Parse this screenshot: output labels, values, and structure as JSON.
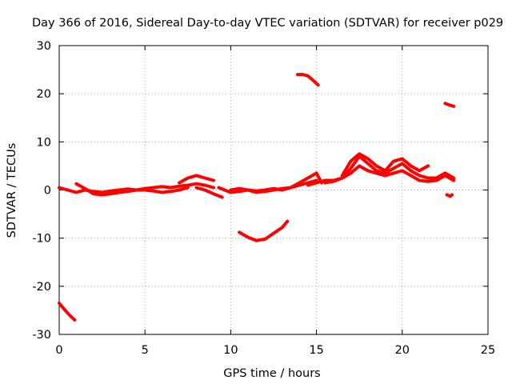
{
  "chart_data": {
    "type": "scatter",
    "title": "Day 366 of 2016, Sidereal Day-to-day VTEC variation (SDTVAR) for receiver p029",
    "xlabel": "GPS time / hours",
    "ylabel": "SDTVAR / TECUs",
    "xlim": [
      0,
      25
    ],
    "ylim": [
      -30,
      30
    ],
    "xticks": [
      0,
      5,
      10,
      15,
      20,
      25
    ],
    "yticks": [
      -30,
      -20,
      -10,
      0,
      10,
      20,
      30
    ],
    "xtick_labels": [
      "0",
      "5",
      "10",
      "15",
      "20",
      "25"
    ],
    "ytick_labels": [
      "-30",
      "-20",
      "-10",
      "0",
      "10",
      "20",
      "30"
    ],
    "grid": true,
    "color": "#ff0000",
    "series": [
      {
        "name": "arc-initial-negative",
        "x": [
          0.0,
          0.3,
          0.6,
          0.9
        ],
        "y": [
          -23.5,
          -24.8,
          -26.0,
          -27.0
        ]
      },
      {
        "name": "arc-baseline-a",
        "x": [
          0.0,
          0.5,
          1.0,
          1.5,
          2.0,
          2.5,
          3.0,
          3.5,
          4.0,
          4.5,
          5.0,
          5.5,
          6.0,
          6.5,
          7.0,
          7.5,
          8.0,
          8.5,
          9.0
        ],
        "y": [
          0.5,
          0.0,
          -0.5,
          0.0,
          -0.3,
          -0.5,
          -0.2,
          0.0,
          0.2,
          0.0,
          0.3,
          0.5,
          0.7,
          0.5,
          0.8,
          1.0,
          1.3,
          1.0,
          0.5
        ]
      },
      {
        "name": "arc-baseline-b",
        "x": [
          1.0,
          1.5,
          2.0,
          2.5,
          3.0,
          3.5,
          4.0,
          4.5,
          5.0,
          5.5,
          6.0,
          6.5,
          7.0,
          7.5
        ],
        "y": [
          1.3,
          0.3,
          -0.8,
          -1.0,
          -0.8,
          -0.5,
          -0.3,
          0.0,
          0.0,
          -0.2,
          -0.5,
          -0.3,
          0.0,
          0.5
        ]
      },
      {
        "name": "arc-bump-8h",
        "x": [
          7.0,
          7.5,
          8.0,
          8.5,
          9.0
        ],
        "y": [
          1.5,
          2.5,
          3.0,
          2.5,
          2.0
        ]
      },
      {
        "name": "arc-bump-8h-lower",
        "x": [
          8.0,
          8.5,
          9.0,
          9.5
        ],
        "y": [
          0.5,
          0.0,
          -0.8,
          -1.5
        ]
      },
      {
        "name": "arc-baseline-c",
        "x": [
          9.3,
          10.0,
          10.5,
          11.0,
          11.5,
          12.0,
          12.5,
          13.0,
          13.5,
          14.0,
          14.5,
          15.0
        ],
        "y": [
          0.5,
          -0.5,
          -0.3,
          0.0,
          -0.2,
          0.0,
          0.3,
          0.0,
          0.5,
          1.0,
          1.5,
          2.0
        ]
      },
      {
        "name": "arc-baseline-d",
        "x": [
          10.0,
          10.5,
          11.0,
          11.5,
          12.0,
          12.5,
          13.0,
          13.5,
          14.0,
          14.5,
          15.0,
          15.3
        ],
        "y": [
          0.0,
          0.3,
          0.0,
          -0.5,
          -0.3,
          0.0,
          0.3,
          0.5,
          1.5,
          2.5,
          3.5,
          1.5
        ]
      },
      {
        "name": "arc-negative-dip",
        "x": [
          10.5,
          11.0,
          11.5,
          12.0,
          12.5,
          13.0,
          13.3
        ],
        "y": [
          -8.8,
          -9.8,
          -10.5,
          -10.2,
          -9.0,
          -7.8,
          -6.5
        ]
      },
      {
        "name": "arc-positive-high",
        "x": [
          13.9,
          14.2,
          14.5,
          14.8,
          15.1
        ],
        "y": [
          24.0,
          24.0,
          23.7,
          22.8,
          21.8
        ]
      },
      {
        "name": "arc-rise-a",
        "x": [
          14.5,
          15.0,
          15.5,
          16.0,
          16.5,
          17.0,
          17.5,
          18.0,
          18.5,
          19.0,
          19.5,
          20.0,
          20.5,
          21.0,
          21.5,
          22.0,
          22.5,
          23.0
        ],
        "y": [
          1.0,
          1.5,
          2.0,
          2.0,
          2.5,
          4.5,
          7.0,
          5.5,
          4.0,
          3.5,
          4.5,
          5.5,
          4.0,
          3.0,
          2.5,
          2.5,
          3.5,
          2.5
        ]
      },
      {
        "name": "arc-rise-b",
        "x": [
          15.5,
          16.0,
          16.5,
          17.0,
          17.5,
          18.0,
          18.5,
          19.0,
          19.5,
          20.0,
          20.5,
          21.0,
          21.5,
          22.0,
          22.5,
          23.0
        ],
        "y": [
          1.5,
          1.8,
          2.5,
          3.5,
          5.0,
          4.0,
          3.5,
          3.0,
          3.5,
          4.0,
          3.0,
          2.0,
          1.8,
          2.0,
          3.0,
          2.0
        ]
      },
      {
        "name": "arc-rise-c",
        "x": [
          16.5,
          17.0,
          17.5,
          18.0,
          18.5,
          19.0,
          19.5,
          20.0,
          20.5,
          21.0,
          21.5
        ],
        "y": [
          3.0,
          6.0,
          7.5,
          6.5,
          5.0,
          4.0,
          6.0,
          6.5,
          5.0,
          4.0,
          5.0
        ]
      },
      {
        "name": "arc-late-positive",
        "x": [
          22.5,
          22.8,
          23.0
        ],
        "y": [
          18.0,
          17.6,
          17.4
        ]
      },
      {
        "name": "arc-late-negative",
        "x": [
          22.6,
          22.8,
          22.9
        ],
        "y": [
          -1.0,
          -1.3,
          -1.0
        ]
      }
    ]
  }
}
